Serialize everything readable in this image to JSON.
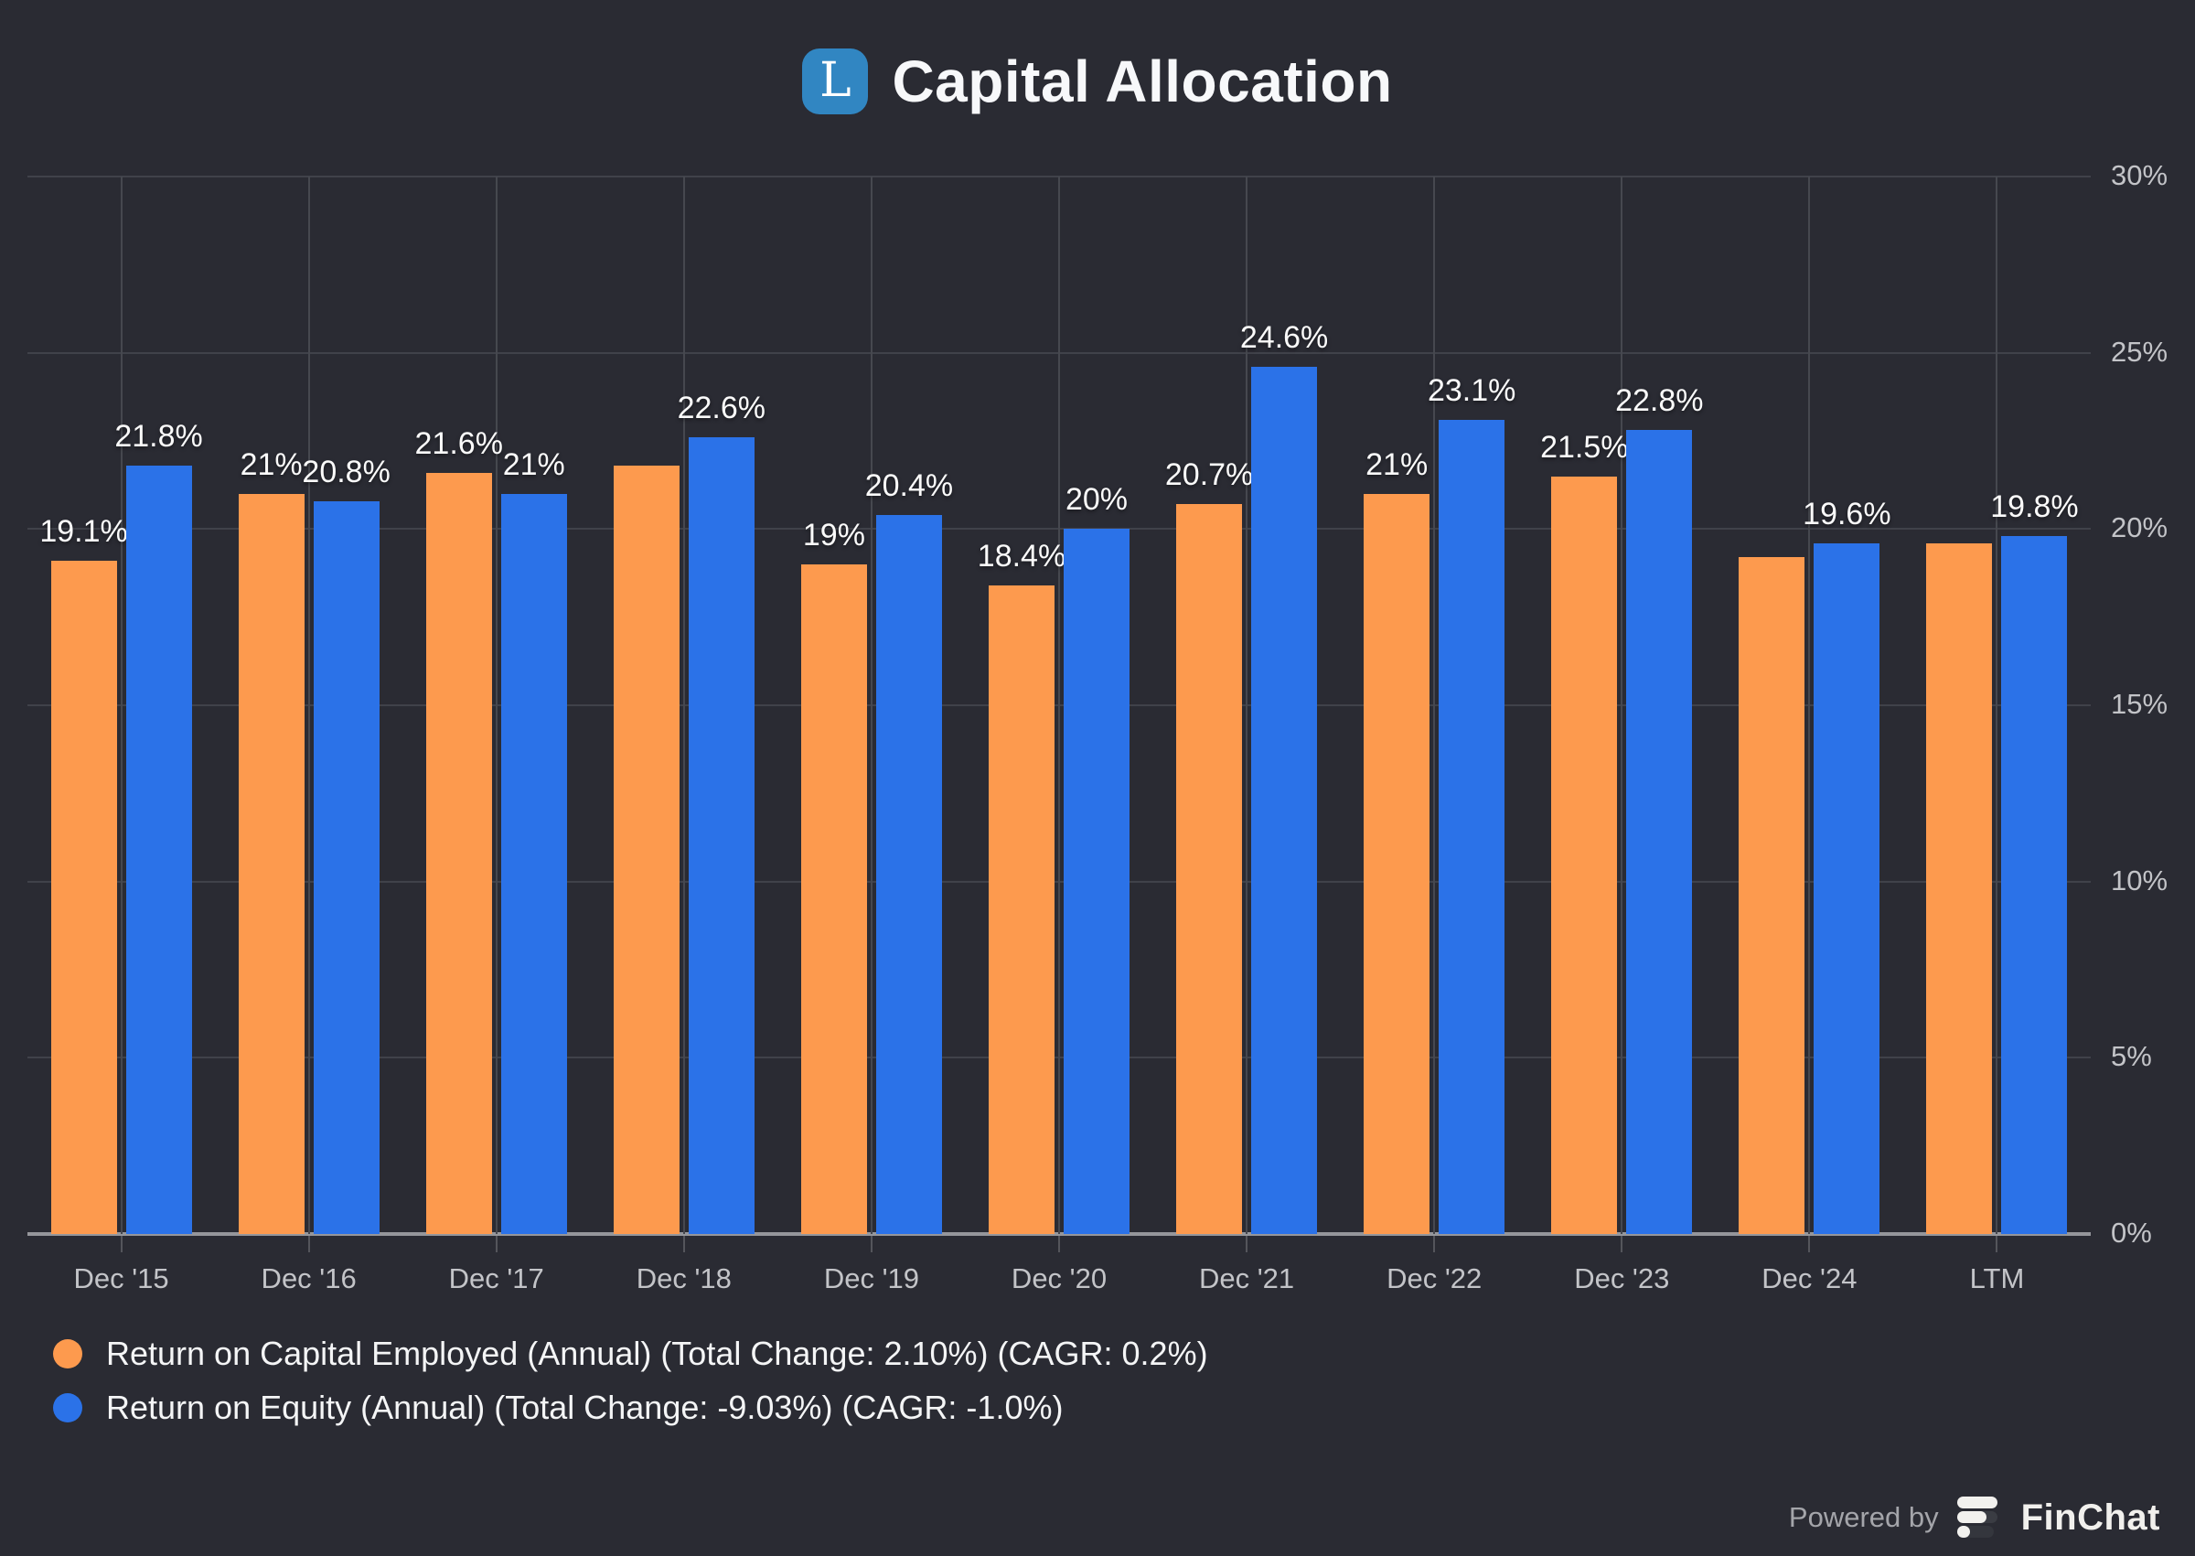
{
  "header": {
    "logo_letter": "L",
    "title": "Capital Allocation"
  },
  "chart_data": {
    "type": "bar",
    "title": "Capital Allocation",
    "categories": [
      "Dec '15",
      "Dec '16",
      "Dec '17",
      "Dec '18",
      "Dec '19",
      "Dec '20",
      "Dec '21",
      "Dec '22",
      "Dec '23",
      "Dec '24",
      "LTM"
    ],
    "series": [
      {
        "name": "Return on Capital Employed (Annual)",
        "legend_label": "Return on Capital Employed (Annual) (Total Change: 2.10%) (CAGR: 0.2%)",
        "color": "#fd9a4e",
        "values": [
          19.1,
          21,
          21.6,
          21.8,
          19,
          18.4,
          20.7,
          21,
          21.5,
          19.2,
          19.6
        ],
        "data_labels": [
          "19.1%",
          "21%",
          "21.6%",
          null,
          "19%",
          "18.4%",
          "20.7%",
          "21%",
          "21.5%",
          null,
          null
        ]
      },
      {
        "name": "Return on Equity (Annual)",
        "legend_label": "Return on Equity (Annual) (Total Change: -9.03%) (CAGR: -1.0%)",
        "color": "#2b72e8",
        "values": [
          21.8,
          20.8,
          21,
          22.6,
          20.4,
          20,
          24.6,
          23.1,
          22.8,
          19.6,
          19.8
        ],
        "data_labels": [
          "21.8%",
          "20.8%",
          "21%",
          "22.6%",
          "20.4%",
          "20%",
          "24.6%",
          "23.1%",
          "22.8%",
          "19.6%",
          "19.8%"
        ]
      }
    ],
    "ylim": [
      0,
      30
    ],
    "yticks": [
      "30%",
      "25%",
      "20%",
      "15%",
      "10%",
      "5%",
      "0%"
    ],
    "grid": true,
    "legend_position": "bottom-left"
  },
  "footer": {
    "powered_by": "Powered by",
    "brand": "FinChat"
  },
  "colors": {
    "background": "#2a2b33",
    "roce_orange": "#fd9a4e",
    "roe_blue": "#2b72e8",
    "logo_blue": "#3186c2",
    "gridline": "#43454c",
    "axis_line": "#95969b",
    "tick_text": "#c3c4c8",
    "data_label_text": "#fafafa"
  }
}
